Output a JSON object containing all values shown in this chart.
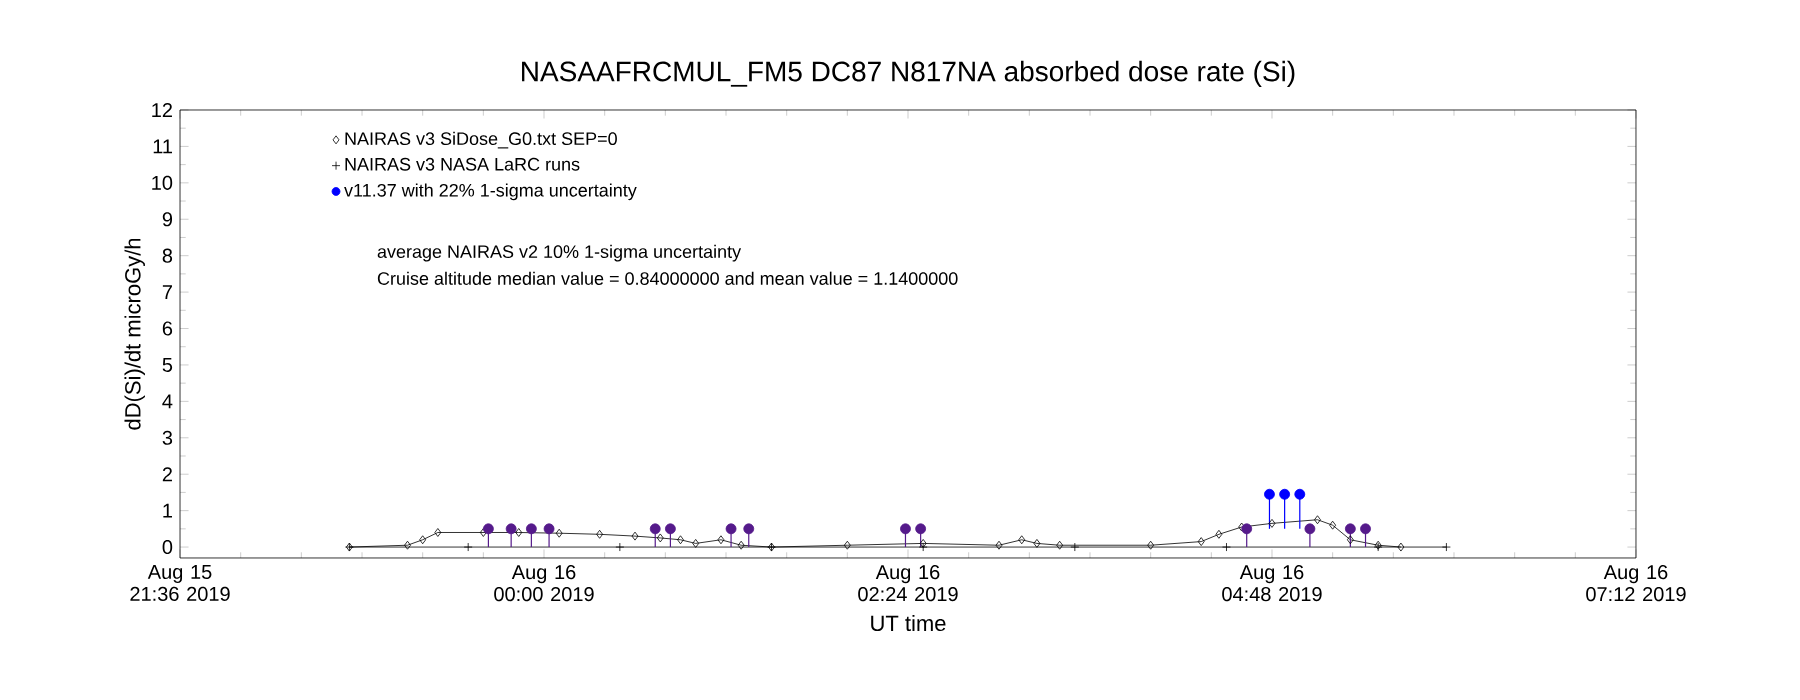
{
  "chart_data": {
    "type": "line",
    "title": "NASAAFRCMUL_FM5 DC87 N817NA absorbed dose rate (Si)",
    "xlabel": "UT time",
    "ylabel": "dD(Si)/dt microGy/h",
    "xlim": [
      "2019-08-15T21:36",
      "2019-08-16T07:12"
    ],
    "xticks": [
      {
        "value": "2019-08-15T21:36",
        "label": "Aug 15 21:36 2019"
      },
      {
        "value": "2019-08-16T00:00",
        "label": "Aug 16 00:00 2019"
      },
      {
        "value": "2019-08-16T02:24",
        "label": "Aug 16 02:24 2019"
      },
      {
        "value": "2019-08-16T04:48",
        "label": "Aug 16 04:48 2019"
      },
      {
        "value": "2019-08-16T07:12",
        "label": "Aug 16 07:12 2019"
      }
    ],
    "ylim": [
      -0.3,
      12
    ],
    "yticks": [
      0,
      1,
      2,
      3,
      4,
      5,
      6,
      7,
      8,
      9,
      10,
      11,
      12
    ],
    "legend": "top left",
    "annotations": [
      "average NAIRAS v2 10% 1-sigma uncertainty",
      "Cruise altitude median value = 0.84000000 and mean value = 1.1400000"
    ],
    "series": [
      {
        "name": "NAIRAS v3 SiDose_G0.txt SEP=0",
        "marker": "diamond",
        "color": "#000000",
        "x": [
          "2019-08-15T22:43",
          "2019-08-15T23:06",
          "2019-08-15T23:12",
          "2019-08-15T23:18",
          "2019-08-15T23:36",
          "2019-08-15T23:50",
          "2019-08-16T00:06",
          "2019-08-16T00:22",
          "2019-08-16T00:36",
          "2019-08-16T00:46",
          "2019-08-16T00:54",
          "2019-08-16T01:00",
          "2019-08-16T01:10",
          "2019-08-16T01:18",
          "2019-08-16T01:30",
          "2019-08-16T02:00",
          "2019-08-16T02:30",
          "2019-08-16T03:00",
          "2019-08-16T03:09",
          "2019-08-16T03:15",
          "2019-08-16T03:24",
          "2019-08-16T04:00",
          "2019-08-16T04:20",
          "2019-08-16T04:27",
          "2019-08-16T04:36",
          "2019-08-16T04:48",
          "2019-08-16T05:06",
          "2019-08-16T05:12",
          "2019-08-16T05:19",
          "2019-08-16T05:30",
          "2019-08-16T05:39"
        ],
        "values": [
          0,
          0.05,
          0.2,
          0.4,
          0.4,
          0.4,
          0.38,
          0.35,
          0.3,
          0.25,
          0.2,
          0.1,
          0.2,
          0.05,
          0,
          0.05,
          0.1,
          0.05,
          0.2,
          0.1,
          0.05,
          0.05,
          0.15,
          0.35,
          0.55,
          0.65,
          0.75,
          0.6,
          0.2,
          0.05,
          0
        ]
      },
      {
        "name": "NAIRAS v3 NASA LaRC runs",
        "marker": "cross",
        "color": "#000000",
        "x": [
          "2019-08-15T22:43",
          "2019-08-15T23:30",
          "2019-08-16T00:30",
          "2019-08-16T01:30",
          "2019-08-16T02:30",
          "2019-08-16T03:30",
          "2019-08-16T04:30",
          "2019-08-16T05:30",
          "2019-08-16T05:57"
        ],
        "values": [
          0,
          0,
          0,
          0,
          0,
          0,
          0,
          0,
          0
        ]
      },
      {
        "name": "v11.37 with 22% 1-sigma uncertainty",
        "type": "scatter",
        "marker": "circle",
        "color": "#0000ff",
        "x": [
          "2019-08-15T23:38",
          "2019-08-15T23:47",
          "2019-08-15T23:55",
          "2019-08-16T00:02",
          "2019-08-16T00:44",
          "2019-08-16T00:50",
          "2019-08-16T01:14",
          "2019-08-16T01:21",
          "2019-08-16T02:23",
          "2019-08-16T02:29",
          "2019-08-16T04:38",
          "2019-08-16T04:47",
          "2019-08-16T04:53",
          "2019-08-16T04:59",
          "2019-08-16T05:03",
          "2019-08-16T05:19",
          "2019-08-16T05:25"
        ],
        "values": [
          0.5,
          0.5,
          0.5,
          0.5,
          0.5,
          0.5,
          0.5,
          0.5,
          0.5,
          0.5,
          0.5,
          1.45,
          1.45,
          1.45,
          0.5,
          0.5,
          0.5
        ],
        "colors": [
          "#551a8b",
          "#551a8b",
          "#551a8b",
          "#551a8b",
          "#551a8b",
          "#551a8b",
          "#551a8b",
          "#551a8b",
          "#551a8b",
          "#551a8b",
          "#551a8b",
          "#0000ff",
          "#0000ff",
          "#0000ff",
          "#551a8b",
          "#551a8b",
          "#551a8b"
        ],
        "errors": [
          [
            0,
            0.5
          ],
          [
            0,
            0.5
          ],
          [
            0,
            0.5
          ],
          [
            0,
            0.5
          ],
          [
            0,
            0.5
          ],
          [
            0,
            0.5
          ],
          [
            0,
            0.5
          ],
          [
            0,
            0.5
          ],
          [
            0,
            0.5
          ],
          [
            0,
            0.5
          ],
          [
            0,
            0.5
          ],
          [
            0.5,
            1.45
          ],
          [
            0.5,
            1.45
          ],
          [
            0.5,
            1.45
          ],
          [
            0,
            0.5
          ],
          [
            0,
            0.5
          ],
          [
            0,
            0.5
          ]
        ]
      }
    ]
  }
}
